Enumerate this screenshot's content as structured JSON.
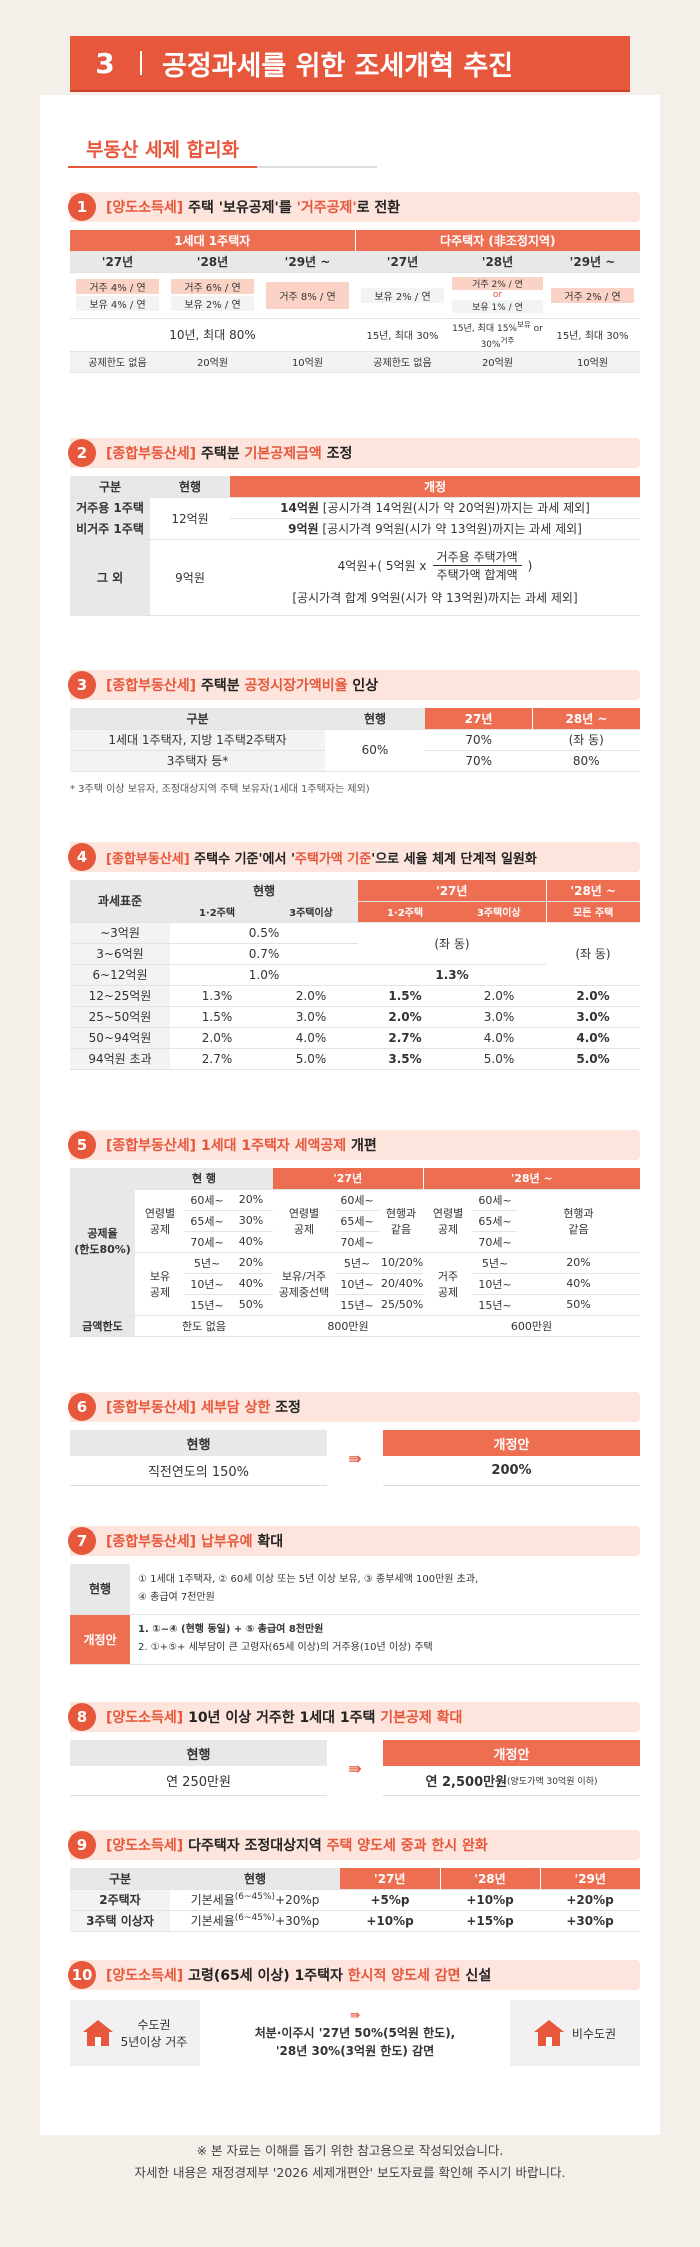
{
  "header": {
    "num": "3",
    "title": "공정과세를 위한 조세개혁 추진"
  },
  "subhead": "부동산 세제 합리화",
  "s1": {
    "num": "1",
    "tag": "[양도소득세]",
    "t1": " 주택 ",
    "t2": "'보유공제'",
    "t3": "를 ",
    "t4": "'거주공제'",
    "t5": "로 전환",
    "g1": "1세대 1주택자",
    "g2": "다주택자 (非조정지역)",
    "years": [
      "'27년",
      "'28년",
      "'29년 ~",
      "'27년",
      "'28년",
      "'29년 ~"
    ],
    "a1": "거주 4% / 연",
    "a2": "보유 4% / 연",
    "b1": "거주 6% / 연",
    "b2": "보유 2% / 연",
    "c1": "거주 8% / 연",
    "d1": "보유 2% / 연",
    "e1": "거주 2% / 연",
    "e_or": "or",
    "e2": "보유 1% / 연",
    "f1": "거주 2% / 연",
    "m1": "10년, 최대 80%",
    "m2": "15년, 최대 30%",
    "m3": "15년, 최대 15%",
    "m3b": "보유",
    "m3c": "or 30%",
    "m3d": "거주",
    "m4": "15년, 최대 30%",
    "l1": "공제한도 없음",
    "l2": "20억원",
    "l3": "10억원",
    "l4": "공제한도 없음",
    "l5": "20억원",
    "l6": "10억원"
  },
  "s2": {
    "num": "2",
    "tag": "[종합부동산세]",
    "t1": " 주택분 ",
    "t2": "기본공제금액",
    "t3": " 조정",
    "h1": "구분",
    "h2": "현행",
    "h3": "개정",
    "r1": "거주용 1주택",
    "r2": "비거주 1주택",
    "r3": "그 외",
    "cur1": "12억원",
    "cur2": "9억원",
    "n1a": "14억원",
    "n1b": " [공시가격 14억원(시가 약 20억원)까지는 과세 제외]",
    "n2a": "9억원",
    "n2b": " [공시가격 9억원(시가 약 13억원)까지는 과세 제외]",
    "f1": "4억원+( 5억원 x",
    "fnum": "거주용 주택가액",
    "fden": "주택가액 합계액",
    "fend": ")",
    "n3": "[공시가격 합계 9억원(시가 약 13억원)까지는 과세 제외]"
  },
  "s3": {
    "num": "3",
    "tag": "[종합부동산세]",
    "t1": " 주택분 ",
    "t2": "공정시장가액비율",
    "t3": " 인상",
    "h1": "구분",
    "h2": "현행",
    "h3": "27년",
    "h4": "28년 ~",
    "r1": "1세대 1주택자, 지방 1주택2주택자",
    "r2": "3주택자 등*",
    "cur": "60%",
    "r1a": "70%",
    "r1b": "(좌 동)",
    "r2a": "70%",
    "r2b": "80%",
    "note": "* 3주택 이상 보유자, 조정대상지역 주택 보유자(1세대 1주택자는 제외)"
  },
  "s4": {
    "num": "4",
    "tag": "[종합부동산세]",
    "t1": " 주택수 기준",
    "t2": "'에서 '",
    "t3": "주택가액 기준",
    "t4": "'으로 세율 체계 단계적 일원화",
    "h0": "과세표준",
    "h1": "현행",
    "h2": "'27년",
    "h3": "'28년 ~",
    "s1": "1·2주택",
    "s2": "3주택이상",
    "s3": "1·2주택",
    "s4": "3주택이상",
    "s5": "모든 주택",
    "rows": [
      [
        "~3억원",
        "0.5%",
        "",
        "",
        "",
        ""
      ],
      [
        "3~6억원",
        "0.7%",
        "",
        "",
        "",
        ""
      ],
      [
        "6~12억원",
        "1.0%",
        "",
        "1.3%",
        "",
        ""
      ],
      [
        "12~25억원",
        "1.3%",
        "2.0%",
        "1.5%",
        "2.0%",
        "2.0%"
      ],
      [
        "25~50억원",
        "1.5%",
        "3.0%",
        "2.0%",
        "3.0%",
        "3.0%"
      ],
      [
        "50~94억원",
        "2.0%",
        "4.0%",
        "2.7%",
        "4.0%",
        "4.0%"
      ],
      [
        "94억원 초과",
        "2.7%",
        "5.0%",
        "3.5%",
        "5.0%",
        "5.0%"
      ]
    ],
    "same": "(좌 동)"
  },
  "s5": {
    "num": "5",
    "tag": "[종합부동산세]",
    "t1": " 1세대 1주택자 세액공제",
    "t2": " 개편",
    "h1": "현 행",
    "h2": "'27년",
    "h3": "'28년 ~",
    "lbl": "공제율\n(한도80%)",
    "age": "연령별\n공제",
    "hold": "보유\n공제",
    "hold2": "보유/거주\n공제중선택",
    "live": "거주\n공제",
    "a60": "60세~",
    "a65": "65세~",
    "a70": "70세~",
    "p20": "20%",
    "p30": "30%",
    "p40": "40%",
    "p50": "50%",
    "same": "현행과\n같음",
    "y5": "5년~",
    "y10": "10년~",
    "y15": "15년~",
    "m1": "10/20%",
    "m2": "20/40%",
    "m3": "25/50%",
    "lim": "금액한도",
    "lim1": "한도 없음",
    "lim2": "800만원",
    "lim3": "600만원"
  },
  "s6": {
    "num": "6",
    "tag": "[종합부동산세]",
    "t1": " 세부담 상한",
    "t2": " 조정",
    "h1": "현행",
    "h2": "개정안",
    "v1": "직전연도의 150%",
    "v2": "200%"
  },
  "s7": {
    "num": "7",
    "tag": "[종합부동산세]",
    "t1": " 납부유예",
    "t2": " 확대",
    "h1": "현행",
    "h2": "개정안",
    "c1": "① 1세대 1주택자, ② 60세 이상 또는 5년 이상 보유, ③ 종부세액 100만원 초과,",
    "c2": "④ 총급여 7천만원",
    "n1": "1. ①~④ (현행 동일) + ⑤ 총급여 8천만원",
    "n2": "2. ①+⑤+ 세부담이 큰 고령자(65세 이상)의 거주용(10년 이상) 주택"
  },
  "s8": {
    "num": "8",
    "tag": "[양도소득세]",
    "t1": " 10년 이상 거주한 1세대 1주택",
    "t2": " 기본공제 확대",
    "h1": "현행",
    "h2": "개정안",
    "v1": "연 250만원",
    "v2": "연 2,500만원",
    "v2s": " (양도가액 30억원 이하)"
  },
  "s9": {
    "num": "9",
    "tag": "[양도소득세]",
    "t1": " 다주택자 조정대상지역",
    "t2": " 주택 양도세 중과 한시 완화",
    "h1": "구분",
    "h2": "현행",
    "h3": "'27년",
    "h4": "'28년",
    "h5": "'29년",
    "r1": "2주택자",
    "r2": "3주택 이상자",
    "c1": "기본세율",
    "sup": "(6~45%)",
    "c1b": "+20%p",
    "c2b": "+30%p",
    "r1v": [
      "+5%p",
      "+10%p",
      "+20%p"
    ],
    "r2v": [
      "+10%p",
      "+15%p",
      "+30%p"
    ]
  },
  "s10": {
    "num": "10",
    "tag": "[양도소득세]",
    "t1": " 고령(65세 이상) 1주택자",
    "t2": " 한시적 양도세 감면",
    "t3": " 신설",
    "left": "수도권\n5년이상 거주",
    "mid1": "처분·이주시 '27년 50%(5억원 한도),",
    "mid2": "'28년 30%(3억원 한도) 감면",
    "right": "비수도권"
  },
  "footer": {
    "l1": "※ 본 자료는 이해를 돕기 위한 참고용으로 작성되었습니다.",
    "l2": "자세한 내용은 재정경제부 '2026 세제개편안' 보도자료를 확인해 주시기 바랍니다."
  }
}
